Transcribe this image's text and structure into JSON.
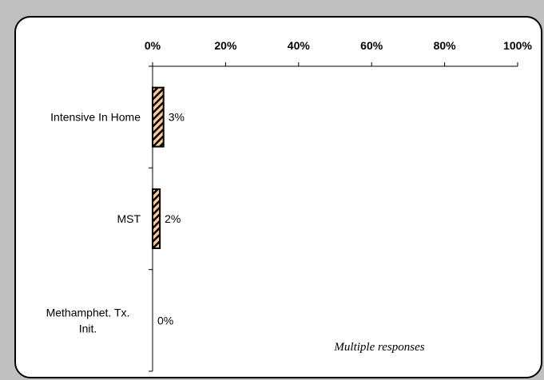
{
  "chart_data": {
    "type": "bar",
    "orientation": "horizontal",
    "categories": [
      "Intensive In Home",
      "MST",
      "Methamphet. Tx. Init."
    ],
    "category_lines": [
      [
        "Intensive In Home"
      ],
      [
        "MST"
      ],
      [
        "Methamphet. Tx.",
        "Init."
      ]
    ],
    "values": [
      3,
      2,
      0
    ],
    "data_labels": [
      "3%",
      "2%",
      "0%"
    ],
    "xlim": [
      0,
      100
    ],
    "x_ticks": [
      0,
      20,
      40,
      60,
      80,
      100
    ],
    "x_tick_labels": [
      "0%",
      "20%",
      "40%",
      "60%",
      "80%",
      "100%"
    ],
    "axis_position": "top",
    "grid": false,
    "bar_fill": "#f8c898",
    "bar_pattern": "diagonal-hatch",
    "bar_stroke": "#000000",
    "annotation": "Multiple responses"
  }
}
